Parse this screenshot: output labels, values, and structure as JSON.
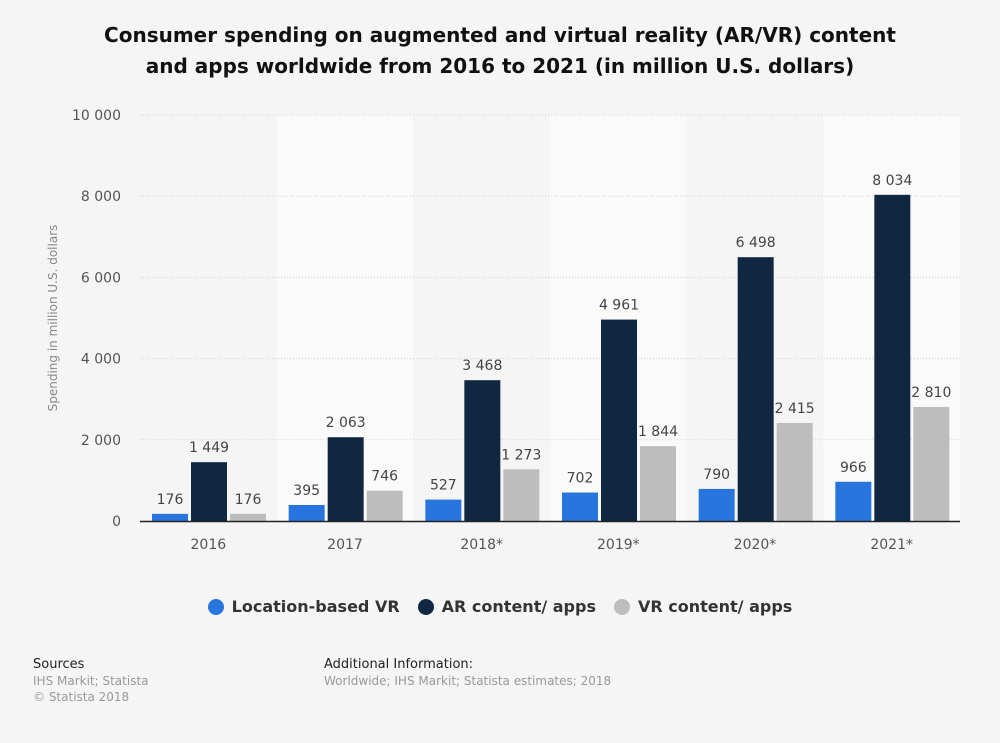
{
  "chart_data": {
    "type": "bar",
    "title": "Consumer spending on augmented and virtual reality (AR/VR) content and apps worldwide from 2016 to 2021 (in million U.S. dollars)",
    "title_lines": [
      "Consumer spending on augmented and virtual reality (AR/VR) content",
      "and apps worldwide from 2016 to 2021 (in million U.S. dollars)"
    ],
    "xlabel": "",
    "ylabel": "Spending in million U.S. dollars",
    "ylim": [
      0,
      10000
    ],
    "yticks": [
      0,
      2000,
      4000,
      6000,
      8000,
      10000
    ],
    "ytick_labels": [
      "0",
      "2 000",
      "4 000",
      "6 000",
      "8 000",
      "10 000"
    ],
    "grid": true,
    "legend_position": "bottom",
    "categories": [
      "2016",
      "2017",
      "2018*",
      "2019*",
      "2020*",
      "2021*"
    ],
    "series": [
      {
        "name": "Location-based VR",
        "color": "#2876dd",
        "values": [
          176,
          395,
          527,
          702,
          790,
          966
        ],
        "labels": [
          "176",
          "395",
          "527",
          "702",
          "790",
          "966"
        ]
      },
      {
        "name": "AR content/ apps",
        "color": "#0f2741",
        "values": [
          1449,
          2063,
          3468,
          4961,
          6498,
          8034
        ],
        "labels": [
          "1 449",
          "2 063",
          "3 468",
          "4 961",
          "6 498",
          "8 034"
        ]
      },
      {
        "name": "VR content/ apps",
        "color": "#bdbdbd",
        "values": [
          176,
          746,
          1273,
          1844,
          2415,
          2810
        ],
        "labels": [
          "176",
          "746",
          "1 273",
          "1 844",
          "2 415",
          "2 810"
        ]
      }
    ]
  },
  "footer": {
    "sources_heading": "Sources",
    "sources": "IHS Markit; Statista",
    "copyright": "© Statista 2018",
    "additional_heading": "Additional Information:",
    "additional": "Worldwide; IHS Markit; Statista estimates; 2018"
  }
}
